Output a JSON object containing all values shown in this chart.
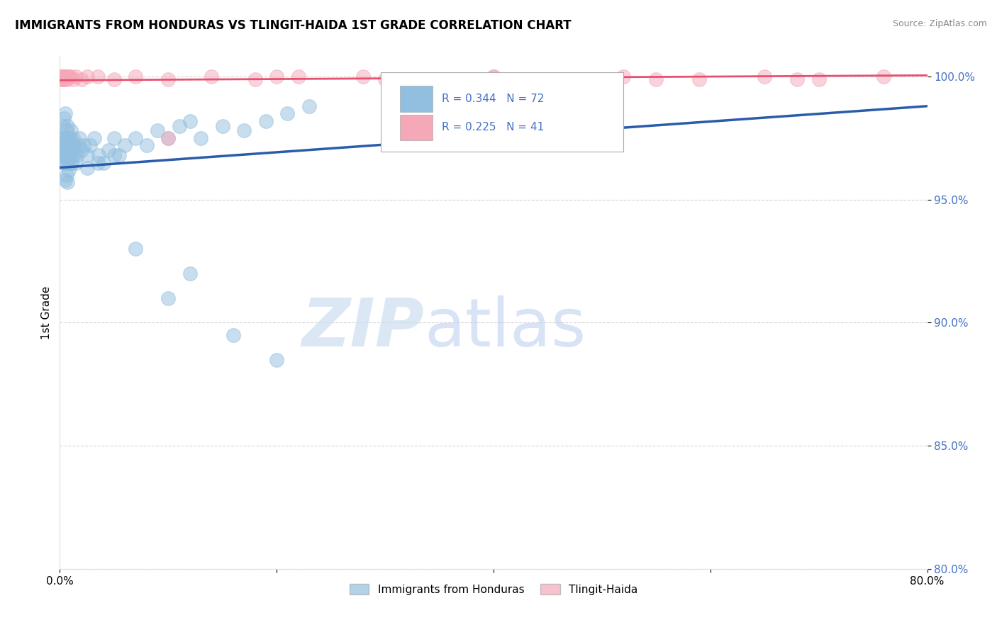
{
  "title": "IMMIGRANTS FROM HONDURAS VS TLINGIT-HAIDA 1ST GRADE CORRELATION CHART",
  "source": "Source: ZipAtlas.com",
  "ylabel": "1st Grade",
  "xlim": [
    0.0,
    0.8
  ],
  "ylim": [
    0.8,
    1.008
  ],
  "yticks": [
    0.8,
    0.85,
    0.9,
    0.95,
    1.0
  ],
  "ytick_labels": [
    "80.0%",
    "85.0%",
    "90.0%",
    "95.0%",
    "100.0%"
  ],
  "xticks": [
    0.0,
    0.2,
    0.4,
    0.6,
    0.8
  ],
  "xtick_labels": [
    "0.0%",
    "",
    "",
    "",
    "80.0%"
  ],
  "blue_R": 0.344,
  "blue_N": 72,
  "pink_R": 0.225,
  "pink_N": 41,
  "blue_color": "#92bfdf",
  "pink_color": "#f4a8b8",
  "blue_line_color": "#2a5caa",
  "pink_line_color": "#e85070",
  "legend_blue_label": "Immigrants from Honduras",
  "legend_pink_label": "Tlingit-Haida",
  "blue_trend": [
    0.963,
    0.988
  ],
  "pink_trend": [
    0.9985,
    1.0005
  ],
  "blue_x": [
    0.001,
    0.001,
    0.002,
    0.002,
    0.003,
    0.003,
    0.003,
    0.004,
    0.004,
    0.004,
    0.005,
    0.005,
    0.005,
    0.005,
    0.006,
    0.006,
    0.006,
    0.007,
    0.007,
    0.007,
    0.008,
    0.008,
    0.008,
    0.009,
    0.009,
    0.01,
    0.01,
    0.011,
    0.011,
    0.012,
    0.012,
    0.013,
    0.014,
    0.015,
    0.016,
    0.017,
    0.018,
    0.02,
    0.022,
    0.025,
    0.028,
    0.032,
    0.036,
    0.04,
    0.045,
    0.05,
    0.055,
    0.06,
    0.07,
    0.08,
    0.09,
    0.1,
    0.11,
    0.12,
    0.13,
    0.15,
    0.17,
    0.19,
    0.21,
    0.23,
    0.005,
    0.006,
    0.007,
    0.008,
    0.025,
    0.035,
    0.05,
    0.07,
    0.1,
    0.12,
    0.16,
    0.2
  ],
  "blue_y": [
    0.972,
    0.968,
    0.975,
    0.97,
    0.98,
    0.965,
    0.975,
    0.983,
    0.97,
    0.968,
    0.985,
    0.97,
    0.975,
    0.965,
    0.978,
    0.97,
    0.975,
    0.972,
    0.965,
    0.98,
    0.975,
    0.968,
    0.972,
    0.975,
    0.965,
    0.978,
    0.97,
    0.972,
    0.965,
    0.975,
    0.968,
    0.972,
    0.97,
    0.965,
    0.968,
    0.972,
    0.975,
    0.97,
    0.972,
    0.968,
    0.972,
    0.975,
    0.968,
    0.965,
    0.97,
    0.975,
    0.968,
    0.972,
    0.975,
    0.972,
    0.978,
    0.975,
    0.98,
    0.982,
    0.975,
    0.98,
    0.978,
    0.982,
    0.985,
    0.988,
    0.958,
    0.96,
    0.957,
    0.962,
    0.963,
    0.965,
    0.968,
    0.93,
    0.91,
    0.92,
    0.895,
    0.885
  ],
  "pink_x": [
    0.001,
    0.001,
    0.001,
    0.002,
    0.002,
    0.003,
    0.003,
    0.004,
    0.005,
    0.005,
    0.006,
    0.006,
    0.007,
    0.008,
    0.01,
    0.012,
    0.015,
    0.02,
    0.025,
    0.035,
    0.05,
    0.07,
    0.1,
    0.14,
    0.18,
    0.22,
    0.28,
    0.34,
    0.4,
    0.46,
    0.52,
    0.59,
    0.65,
    0.7,
    0.76,
    0.1,
    0.2,
    0.3,
    0.4,
    0.55,
    0.68
  ],
  "pink_y": [
    1.0,
    0.999,
    1.0,
    1.0,
    0.999,
    1.0,
    0.999,
    1.0,
    1.0,
    0.999,
    1.0,
    0.999,
    1.0,
    1.0,
    1.0,
    0.999,
    1.0,
    0.999,
    1.0,
    1.0,
    0.999,
    1.0,
    0.999,
    1.0,
    0.999,
    1.0,
    1.0,
    0.999,
    1.0,
    0.999,
    1.0,
    0.999,
    1.0,
    0.999,
    1.0,
    0.975,
    1.0,
    0.999,
    1.0,
    0.999,
    0.999
  ]
}
